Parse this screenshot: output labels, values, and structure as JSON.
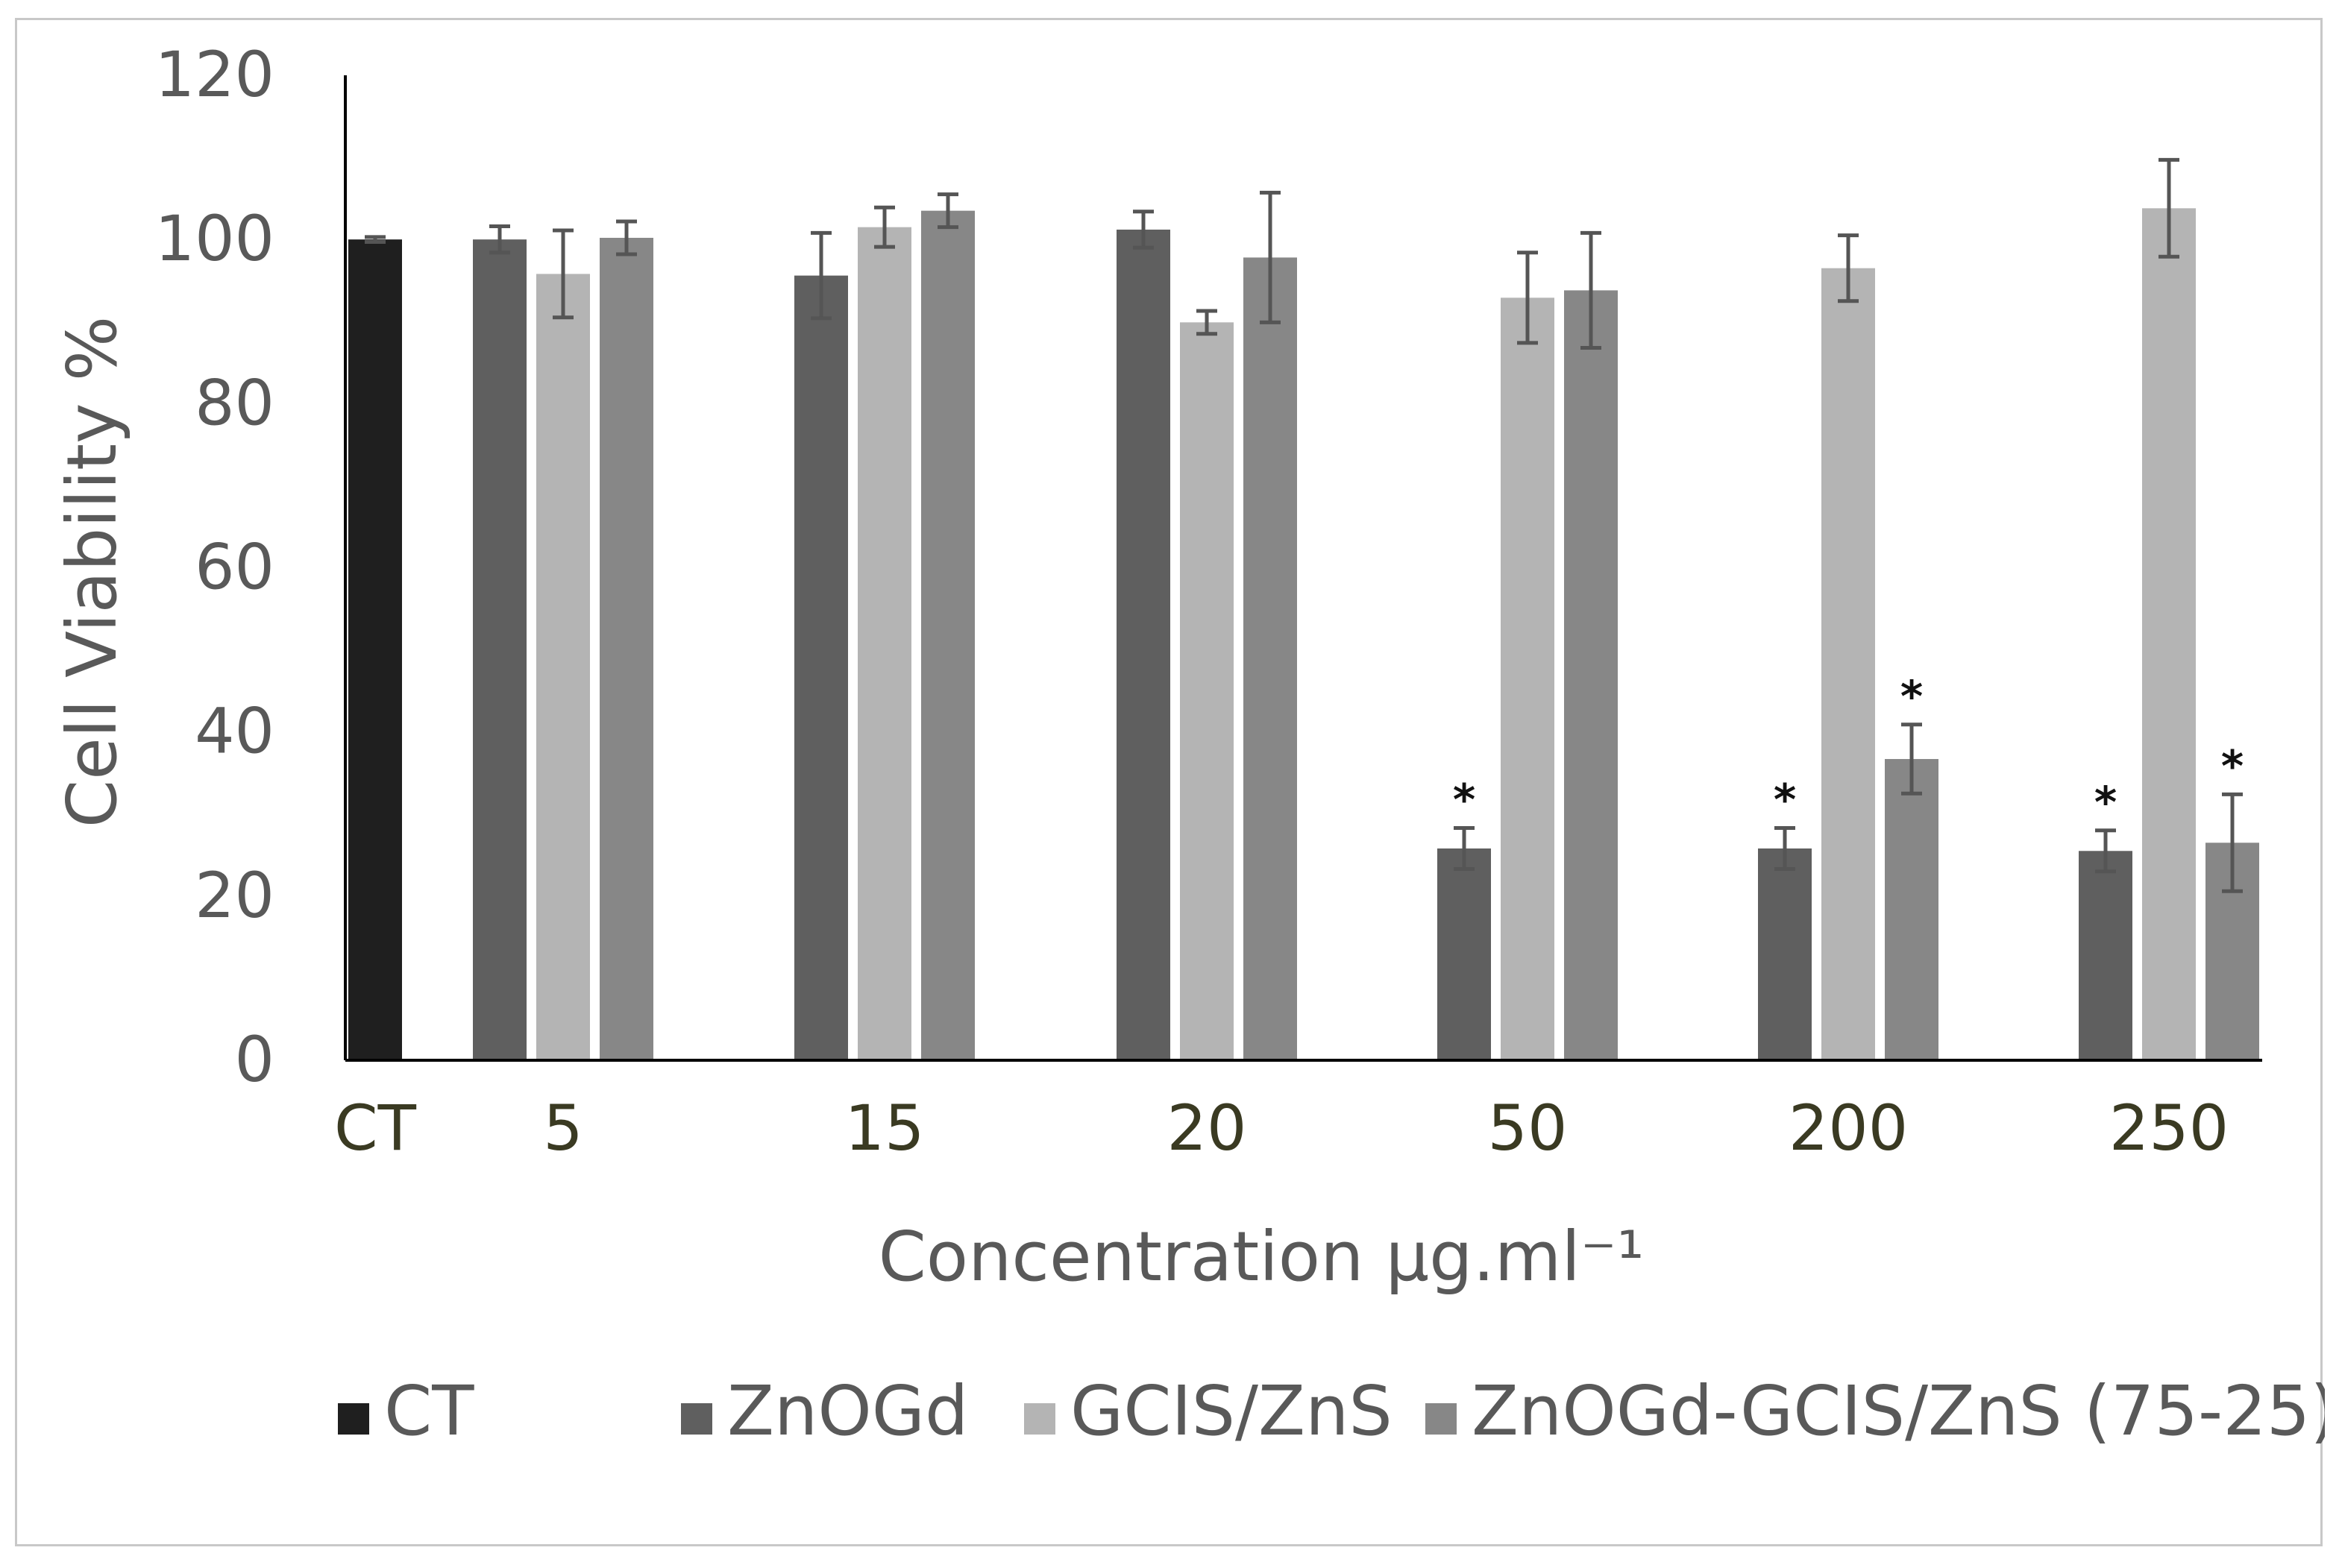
{
  "chart_data": {
    "type": "bar",
    "categories": [
      "CT",
      "5",
      "15",
      "20",
      "50",
      "200",
      "250"
    ],
    "xlabel": "Concentration µg.ml⁻¹",
    "ylabel": "Cell Viability %",
    "ylim": [
      0,
      120
    ],
    "yticks": [
      0,
      20,
      40,
      60,
      80,
      100,
      120
    ],
    "grid": false,
    "legend_position": "bottom",
    "series": [
      {
        "name": "CT",
        "color": "#1f1f1f",
        "values": [
          100,
          null,
          null,
          null,
          null,
          null,
          null
        ],
        "errors": [
          0.3,
          null,
          null,
          null,
          null,
          null,
          null
        ],
        "significant": [
          false,
          false,
          false,
          false,
          false,
          false,
          false
        ]
      },
      {
        "name": "ZnOGd",
        "color": "#5f5f5f",
        "values": [
          null,
          100,
          95.6,
          101.2,
          25.8,
          25.8,
          25.5
        ],
        "errors": [
          null,
          1.6,
          5.2,
          2.2,
          2.5,
          2.5,
          2.5
        ],
        "significant": [
          false,
          false,
          false,
          false,
          true,
          true,
          true
        ]
      },
      {
        "name": "GCIS/ZnS",
        "color": "#b4b4b4",
        "values": [
          null,
          95.8,
          101.5,
          89.9,
          92.9,
          96.5,
          103.8
        ],
        "errors": [
          null,
          5.3,
          2.4,
          1.4,
          5.5,
          4.0,
          5.9
        ],
        "significant": [
          false,
          false,
          false,
          false,
          false,
          false,
          false
        ]
      },
      {
        "name": "ZnOGd-GCIS/ZnS (75-25)",
        "color": "#878787",
        "values": [
          null,
          100.2,
          103.5,
          97.8,
          93.8,
          36.7,
          26.5
        ],
        "errors": [
          null,
          2.0,
          2.0,
          7.9,
          7.0,
          4.2,
          5.9
        ],
        "significant": [
          false,
          false,
          false,
          false,
          false,
          true,
          true
        ]
      }
    ],
    "annotation_symbol": "*"
  }
}
